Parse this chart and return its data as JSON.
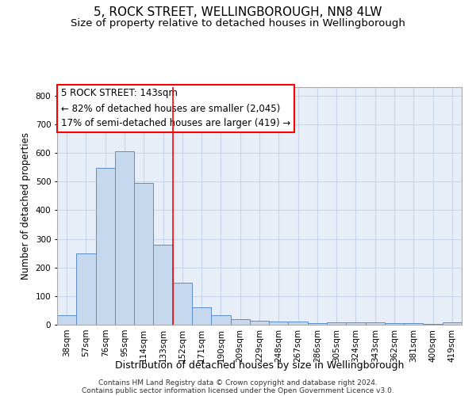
{
  "title": "5, ROCK STREET, WELLINGBOROUGH, NN8 4LW",
  "subtitle": "Size of property relative to detached houses in Wellingborough",
  "xlabel": "Distribution of detached houses by size in Wellingborough",
  "ylabel": "Number of detached properties",
  "categories": [
    "38sqm",
    "57sqm",
    "76sqm",
    "95sqm",
    "114sqm",
    "133sqm",
    "152sqm",
    "171sqm",
    "190sqm",
    "209sqm",
    "229sqm",
    "248sqm",
    "267sqm",
    "286sqm",
    "305sqm",
    "324sqm",
    "343sqm",
    "362sqm",
    "381sqm",
    "400sqm",
    "419sqm"
  ],
  "values": [
    33,
    248,
    548,
    605,
    495,
    280,
    148,
    62,
    32,
    20,
    15,
    12,
    10,
    6,
    8,
    8,
    7,
    5,
    5,
    2,
    7
  ],
  "bar_color": "#c5d8ee",
  "bar_edge_color": "#5b8dc8",
  "vline_x_index": 5.5,
  "vline_color": "red",
  "annotation_line1": "5 ROCK STREET: 143sqm",
  "annotation_line2": "← 82% of detached houses are smaller (2,045)",
  "annotation_line3": "17% of semi-detached houses are larger (419) →",
  "annotation_box_color": "white",
  "annotation_box_edge_color": "red",
  "ylim": [
    0,
    830
  ],
  "yticks": [
    0,
    100,
    200,
    300,
    400,
    500,
    600,
    700,
    800
  ],
  "grid_color": "#c8d4e8",
  "background_color": "#e8eef8",
  "footnote_line1": "Contains HM Land Registry data © Crown copyright and database right 2024.",
  "footnote_line2": "Contains public sector information licensed under the Open Government Licence v3.0.",
  "title_fontsize": 11,
  "subtitle_fontsize": 9.5,
  "xlabel_fontsize": 9,
  "ylabel_fontsize": 8.5,
  "tick_fontsize": 7.5,
  "annotation_fontsize": 8.5,
  "footnote_fontsize": 6.5
}
